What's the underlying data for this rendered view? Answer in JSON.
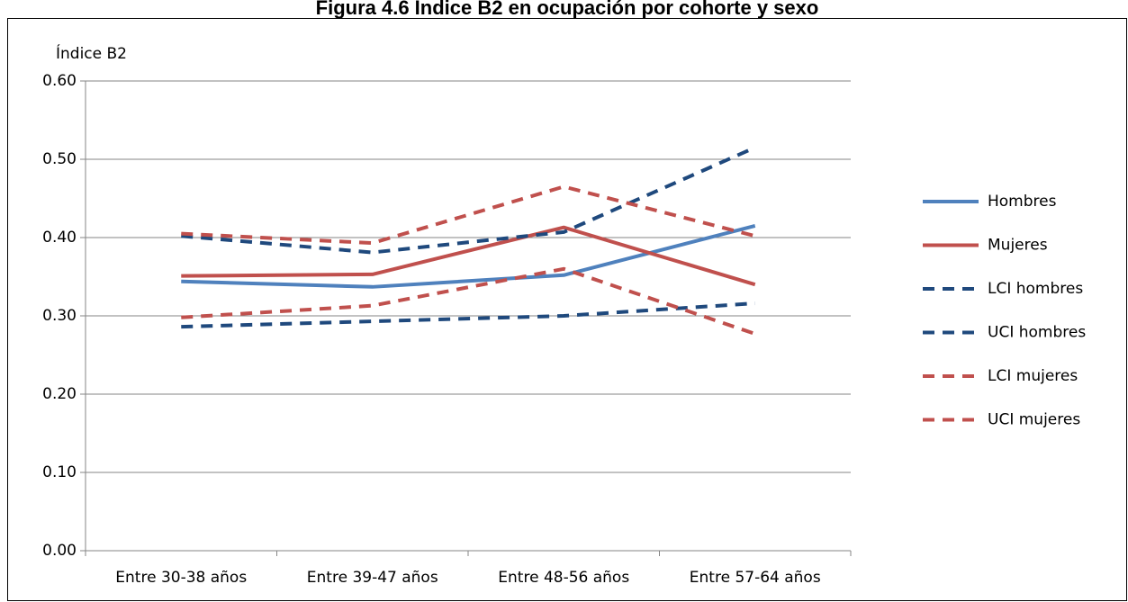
{
  "chart_data": {
    "type": "line",
    "title": "Figura 4.6 Índice B2 en ocupación por cohorte y sexo",
    "y_label": "Índice B2",
    "categories": [
      "Entre 30-38 años",
      "Entre 39-47 años",
      "Entre 48-56 años",
      "Entre 57-64 años"
    ],
    "series": [
      {
        "name": "Hombres",
        "color": "#4f81bd",
        "dashed": false,
        "values": [
          0.344,
          0.337,
          0.352,
          0.415
        ]
      },
      {
        "name": "Mujeres",
        "color": "#c0504d",
        "dashed": false,
        "values": [
          0.351,
          0.353,
          0.413,
          0.34
        ]
      },
      {
        "name": "LCI hombres",
        "color": "#1f497d",
        "dashed": true,
        "values": [
          0.286,
          0.293,
          0.3,
          0.316
        ]
      },
      {
        "name": "UCI hombres",
        "color": "#1f497d",
        "dashed": true,
        "values": [
          0.402,
          0.381,
          0.407,
          0.515
        ]
      },
      {
        "name": "LCI mujeres",
        "color": "#c0504d",
        "dashed": true,
        "values": [
          0.298,
          0.313,
          0.36,
          0.277
        ]
      },
      {
        "name": "UCI mujeres",
        "color": "#c0504d",
        "dashed": true,
        "values": [
          0.405,
          0.393,
          0.465,
          0.402
        ]
      }
    ],
    "ylim": [
      0,
      0.6
    ],
    "yticks": [
      {
        "value": 0,
        "label": "0.00"
      },
      {
        "value": 0.1,
        "label": "0.10"
      },
      {
        "value": 0.2,
        "label": "0.20"
      },
      {
        "value": 0.3,
        "label": "0.30"
      },
      {
        "value": 0.4,
        "label": "0.40"
      },
      {
        "value": 0.5,
        "label": "0.50"
      },
      {
        "value": 0.6,
        "label": "0.60"
      }
    ],
    "grid": true,
    "legend": "right"
  }
}
